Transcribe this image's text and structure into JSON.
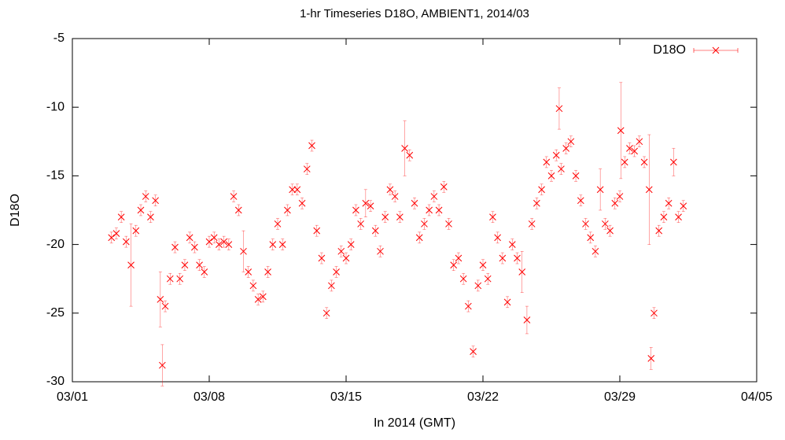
{
  "chart_data": {
    "type": "scatter",
    "title": "1-hr Timeseries D18O, AMBIENT1, 2014/03",
    "x_label": "In 2014 (GMT)",
    "y_label": "D18O",
    "xlim": [
      1,
      36
    ],
    "xticks": [
      {
        "value": 1,
        "label": "03/01"
      },
      {
        "value": 8,
        "label": "03/08"
      },
      {
        "value": 15,
        "label": "03/15"
      },
      {
        "value": 22,
        "label": "03/22"
      },
      {
        "value": 29,
        "label": "03/29"
      },
      {
        "value": 36,
        "label": "04/05"
      }
    ],
    "ylim": [
      -30,
      -5
    ],
    "yticks": [
      -30,
      -25,
      -20,
      -15,
      -10,
      -5
    ],
    "grid": false,
    "legend": "top right",
    "series": [
      {
        "name": "D18O",
        "color": "#ff0000",
        "x": [
          3,
          3.25,
          3.5,
          3.75,
          4,
          4.25,
          4.5,
          4.75,
          5,
          5.25,
          5.5,
          5.6,
          5.75,
          6,
          6.25,
          6.5,
          6.75,
          7,
          7.25,
          7.5,
          7.75,
          8,
          8.25,
          8.5,
          8.75,
          9,
          9.25,
          9.5,
          9.75,
          10,
          10.25,
          10.5,
          10.75,
          11,
          11.25,
          11.5,
          11.75,
          12,
          12.25,
          12.5,
          12.75,
          13,
          13.25,
          13.5,
          13.75,
          14,
          14.25,
          14.5,
          14.75,
          15,
          15.25,
          15.5,
          15.75,
          16,
          16.25,
          16.5,
          16.75,
          17,
          17.25,
          17.5,
          17.75,
          18,
          18.25,
          18.5,
          18.75,
          19,
          19.25,
          19.5,
          19.75,
          20,
          20.25,
          20.5,
          20.75,
          21,
          21.25,
          21.5,
          21.75,
          22,
          22.25,
          22.5,
          22.75,
          23,
          23.25,
          23.5,
          23.75,
          24,
          24.25,
          24.5,
          24.75,
          25,
          25.25,
          25.5,
          25.75,
          25.9,
          26,
          26.25,
          26.5,
          26.75,
          27,
          27.25,
          27.5,
          27.75,
          28,
          28.25,
          28.5,
          28.75,
          29,
          29.05,
          29.25,
          29.5,
          29.75,
          30,
          30.25,
          30.5,
          30.6,
          30.75,
          31,
          31.25,
          31.5,
          31.75,
          32,
          32.25
        ],
        "values": [
          -19.5,
          -19.2,
          -18,
          -19.8,
          -21.5,
          -19,
          -17.5,
          -16.5,
          -18,
          -16.8,
          -24,
          -28.8,
          -24.5,
          -22.5,
          -20.2,
          -22.5,
          -21.5,
          -19.5,
          -20.2,
          -21.5,
          -22,
          -19.8,
          -19.5,
          -20,
          -19.8,
          -20,
          -16.5,
          -17.5,
          -20.5,
          -22,
          -23,
          -24,
          -23.8,
          -22,
          -20,
          -18.5,
          -20,
          -17.5,
          -16,
          -16,
          -17,
          -14.5,
          -12.8,
          -19,
          -21,
          -25,
          -23,
          -22,
          -20.5,
          -21,
          -20,
          -17.5,
          -18.5,
          -17,
          -17.2,
          -19,
          -20.5,
          -18,
          -16,
          -16.5,
          -18,
          -13,
          -13.5,
          -17,
          -19.5,
          -18.5,
          -17.5,
          -16.5,
          -17.5,
          -15.8,
          -18.5,
          -21.5,
          -21,
          -22.5,
          -24.5,
          -27.8,
          -23,
          -21.5,
          -22.5,
          -18,
          -19.5,
          -21,
          -24.2,
          -20,
          -21,
          -22,
          -25.5,
          -18.5,
          -17,
          -16,
          -14,
          -15,
          -13.5,
          -10.1,
          -14.5,
          -13,
          -12.5,
          -15,
          -16.8,
          -18.5,
          -19.5,
          -20.5,
          -16,
          -18.5,
          -19,
          -17,
          -16.5,
          -11.7,
          -14,
          -13,
          -13.2,
          -12.5,
          -14,
          -16,
          -28.3,
          -25,
          -19,
          -18,
          -17,
          -14,
          -18,
          -17.2
        ],
        "errors": [
          0.4,
          0.4,
          0.4,
          0.4,
          3,
          0.4,
          0.4,
          0.4,
          0.4,
          0.4,
          2,
          1.5,
          0.4,
          0.4,
          0.4,
          0.4,
          0.4,
          0.4,
          0.4,
          0.4,
          0.4,
          0.4,
          0.4,
          0.4,
          0.4,
          0.4,
          0.4,
          0.4,
          1.5,
          0.4,
          0.4,
          0.4,
          0.4,
          0.4,
          0.4,
          0.4,
          0.4,
          0.4,
          0.4,
          0.4,
          0.4,
          0.4,
          0.4,
          0.4,
          0.4,
          0.4,
          0.4,
          0.4,
          0.4,
          0.4,
          0.4,
          0.4,
          0.4,
          1,
          0.4,
          0.4,
          0.4,
          0.4,
          0.4,
          0.4,
          0.4,
          2,
          0.4,
          0.4,
          0.4,
          0.4,
          0.4,
          0.4,
          0.4,
          0.4,
          0.4,
          0.4,
          0.4,
          0.4,
          0.4,
          0.4,
          0.4,
          0.4,
          0.4,
          0.4,
          0.4,
          0.4,
          0.4,
          0.4,
          0.4,
          1.5,
          1,
          0.4,
          0.4,
          0.4,
          0.4,
          0.4,
          0.4,
          1.5,
          0.4,
          0.4,
          0.4,
          0.4,
          0.4,
          0.4,
          0.4,
          0.4,
          1.5,
          0.4,
          0.4,
          0.4,
          0.4,
          3.5,
          0.4,
          0.4,
          0.4,
          0.4,
          0.4,
          4,
          0.8,
          0.4,
          0.4,
          0.4,
          0.4,
          1,
          0.4,
          0.4
        ]
      }
    ]
  }
}
